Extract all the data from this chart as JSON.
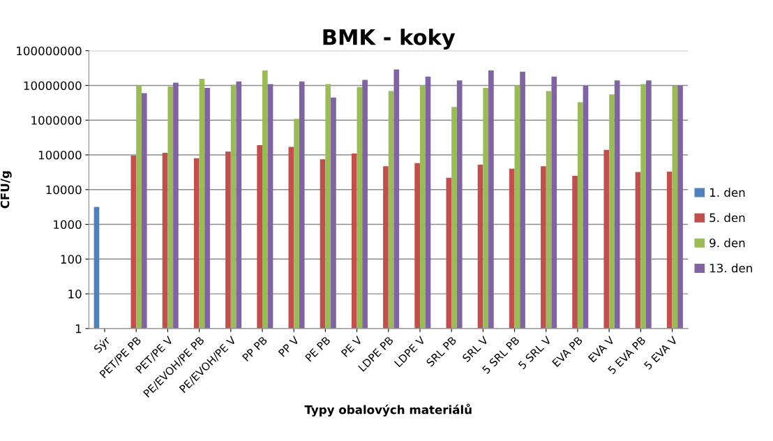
{
  "chart_data": {
    "type": "bar",
    "title": "BMK - koky",
    "xlabel": "Typy obalových materiálů",
    "ylabel": "CFU/g",
    "categories": [
      "Sýr",
      "PET/PE PB",
      "PET/PE V",
      "PE/EVOH/PE PB",
      "PE/EVOH/PE V",
      "PP PB",
      "PP V",
      "PE PB",
      "PE V",
      "LDPE PB",
      "LDPE V",
      "SRL PB",
      "SRL V",
      "5 SRL PB",
      "5 SRL V",
      "EVA PB",
      "EVA V",
      "5 EVA PB",
      "5 EVA V"
    ],
    "series": [
      {
        "name": "1. den",
        "color": "#4f81bd",
        "values": [
          3200,
          null,
          null,
          null,
          null,
          null,
          null,
          null,
          null,
          null,
          null,
          null,
          null,
          null,
          null,
          null,
          null,
          null,
          null
        ]
      },
      {
        "name": "5. den",
        "color": "#c0504d",
        "values": [
          null,
          95000,
          115000,
          80000,
          125000,
          190000,
          170000,
          75000,
          110000,
          47000,
          58000,
          22000,
          52000,
          40000,
          47000,
          25000,
          140000,
          32000,
          33000
        ]
      },
      {
        "name": "9. den",
        "color": "#9bbb59",
        "values": [
          null,
          10000000,
          9300000,
          15500000,
          10500000,
          27000000,
          1100000,
          11000000,
          9000000,
          6900000,
          10000000,
          2400000,
          8500000,
          10000000,
          6900000,
          3300000,
          5500000,
          11000000,
          9700000
        ]
      },
      {
        "name": "13. den",
        "color": "#8064a2",
        "values": [
          null,
          6000000,
          12000000,
          8500000,
          13000000,
          11000000,
          13000000,
          4500000,
          14500000,
          29000000,
          18000000,
          14000000,
          27000000,
          25000000,
          18000000,
          9700000,
          14000000,
          14000000,
          10000000
        ]
      }
    ],
    "log": "y",
    "ylim": [
      1,
      100000000
    ],
    "yticks": [
      1,
      10,
      100,
      1000,
      10000,
      100000,
      1000000,
      10000000,
      100000000
    ],
    "grid": "y",
    "legend": "right"
  }
}
